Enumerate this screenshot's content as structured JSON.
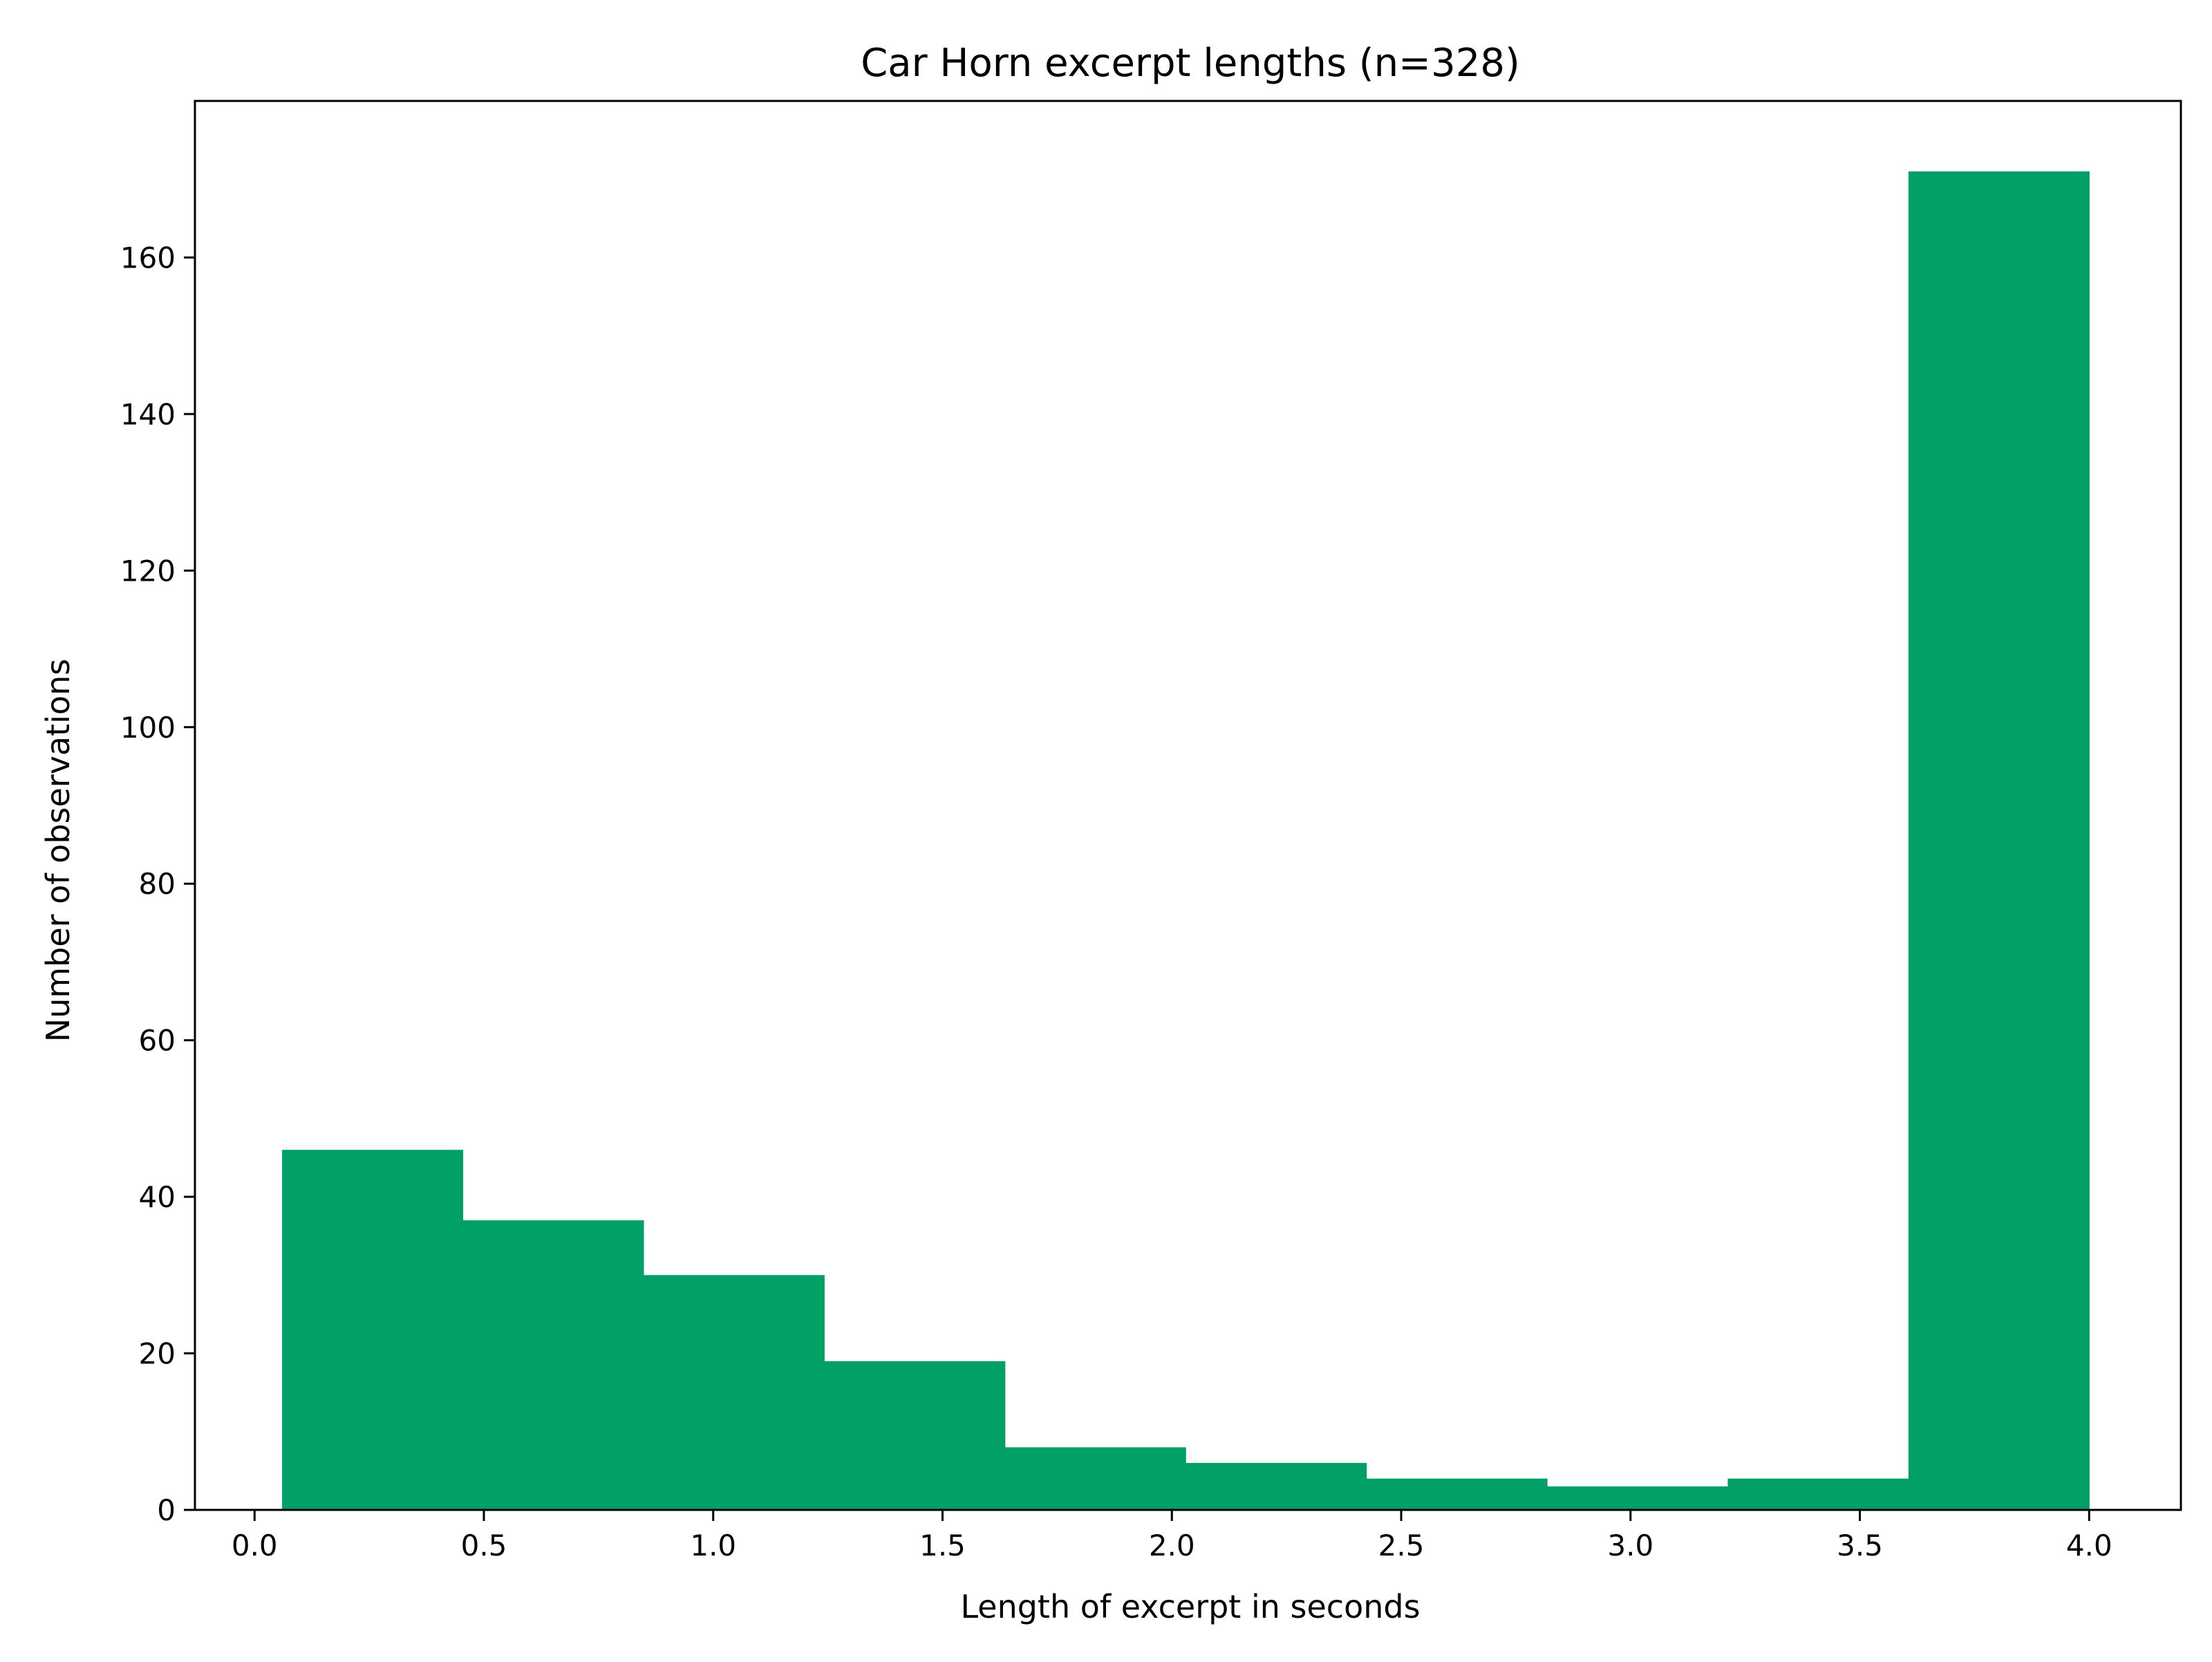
{
  "chart_data": {
    "type": "bar",
    "title": "Car Horn excerpt lengths (n=328)",
    "xlabel": "Length of excerpt in seconds",
    "ylabel": "Number of observations",
    "xlim": [
      -0.13,
      4.2
    ],
    "ylim": [
      0,
      180
    ],
    "x_ticks": [
      "0.0",
      "0.5",
      "1.0",
      "1.5",
      "2.0",
      "2.5",
      "3.0",
      "3.5",
      "4.0"
    ],
    "y_ticks": [
      "0",
      "20",
      "40",
      "60",
      "80",
      "100",
      "120",
      "140",
      "160"
    ],
    "bin_edges": [
      0.06,
      0.454,
      0.848,
      1.242,
      1.636,
      2.03,
      2.424,
      2.818,
      3.212,
      3.606,
      4.0
    ],
    "values": [
      46,
      37,
      30,
      19,
      8,
      6,
      4,
      3,
      4,
      171
    ],
    "bar_color": "#00a066",
    "grid": false,
    "legend": "none"
  }
}
